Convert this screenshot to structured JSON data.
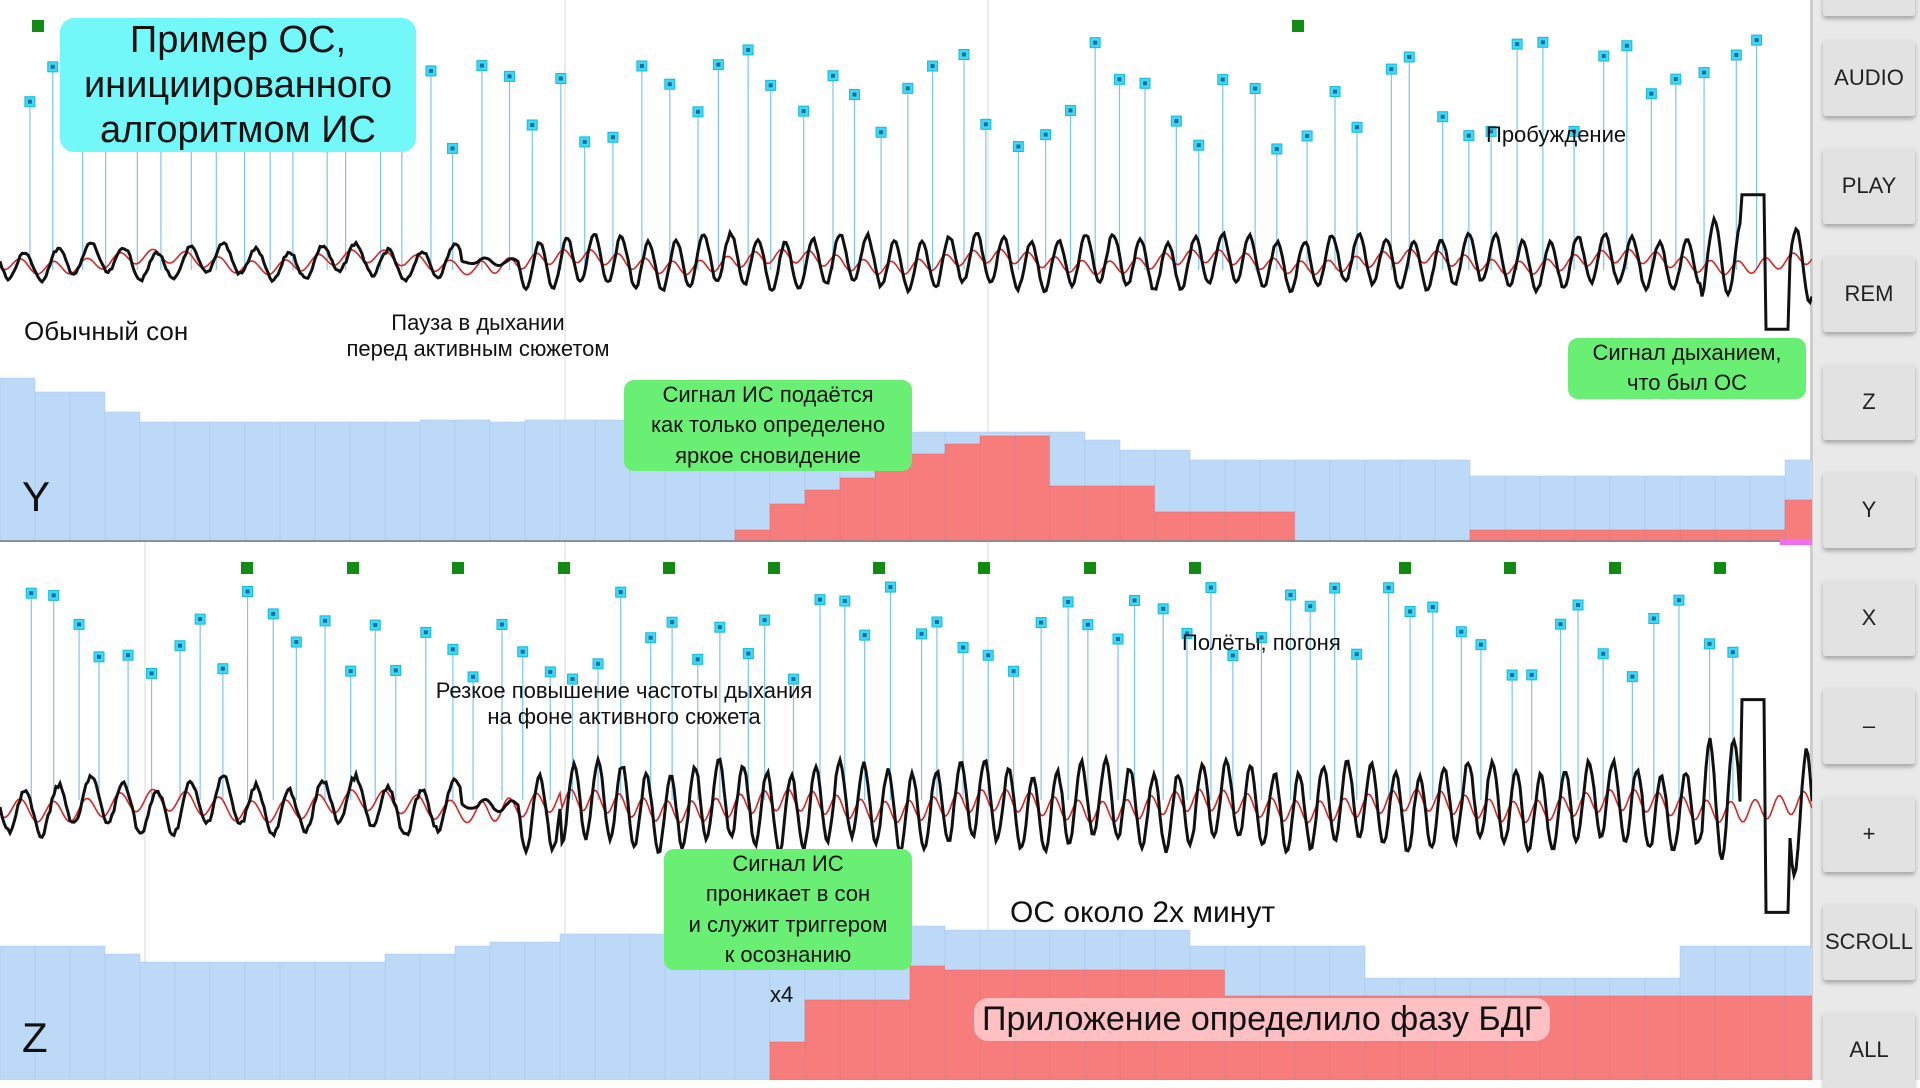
{
  "sidebar": {
    "buttons": [
      {
        "label": "AUDIO"
      },
      {
        "label": "PLAY"
      },
      {
        "label": "REM"
      },
      {
        "label": "Z"
      },
      {
        "label": "Y"
      },
      {
        "label": "X"
      },
      {
        "label": "–"
      },
      {
        "label": "+"
      },
      {
        "label": "SCROLL"
      },
      {
        "label": "ALL"
      }
    ]
  },
  "panel_y": {
    "label": "Y",
    "annotations": {
      "title": "Пример ОС,\nинициированного\nалгоритмом ИС",
      "normal_sleep": "Обычный сон",
      "breath_pause": "Пауза в дыхании\nперед активным сюжетом",
      "signal_sent": "Сигнал ИС подаётся\nкак только определено\nяркое сновидение",
      "awakening": "Пробуждение",
      "breath_signal": "Сигнал дыханием,\nчто был ОС"
    }
  },
  "panel_z": {
    "label": "Z",
    "annotations": {
      "breath_rate": "Резкое повышение частоты дыхания\nна фоне активного сюжета",
      "flights": "Полёты, погоня",
      "signal_penetrates": "Сигнал ИС\nпроникает в сон\nи служит триггером\nк осознанию",
      "x4": "x4",
      "duration": "ОС около 2х минут",
      "rem_detected": "Приложение определило фазу БДГ"
    }
  },
  "colors": {
    "background": "#ffffff",
    "bar_blue": "#bcd9f7",
    "bar_red": "#f77d7d",
    "marker_cyan": "#3fd9f5",
    "marker_green": "#138a13",
    "signal_black": "#111111",
    "signal_red": "#d82626",
    "highlight_green": "#69ef73",
    "highlight_cyan": "#72f8f8",
    "highlight_pink": "#ffc0c4"
  }
}
